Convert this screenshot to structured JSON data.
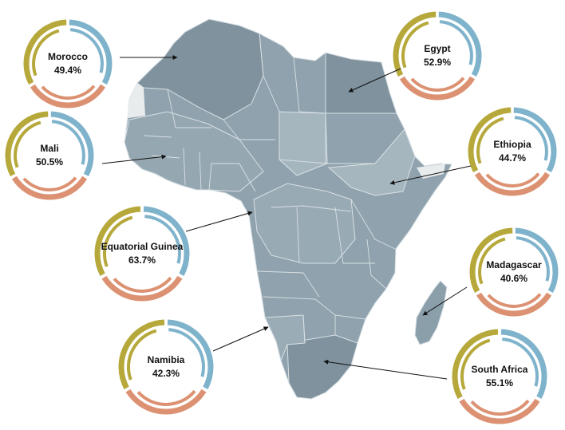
{
  "colors": {
    "blue": "#7fb3cc",
    "orange": "#dc9272",
    "olive": "#b6a83a",
    "map_dark": "#7f929e",
    "map_mid": "#90a3ae",
    "map_light": "#a6b6bf",
    "border": "#d9e1e5",
    "disputed": "#e9eced",
    "arrow": "#111111"
  },
  "countries": [
    {
      "name": "Morocco",
      "percent": "49.4%"
    },
    {
      "name": "Egypt",
      "percent": "52.9%"
    },
    {
      "name": "Mali",
      "percent": "50.5%"
    },
    {
      "name": "Ethiopia",
      "percent": "44.7%"
    },
    {
      "name": "Equatorial Guinea",
      "percent": "63.7%"
    },
    {
      "name": "Madagascar",
      "percent": "40.6%"
    },
    {
      "name": "Namibia",
      "percent": "42.3%"
    },
    {
      "name": "South Africa",
      "percent": "55.1%"
    }
  ]
}
